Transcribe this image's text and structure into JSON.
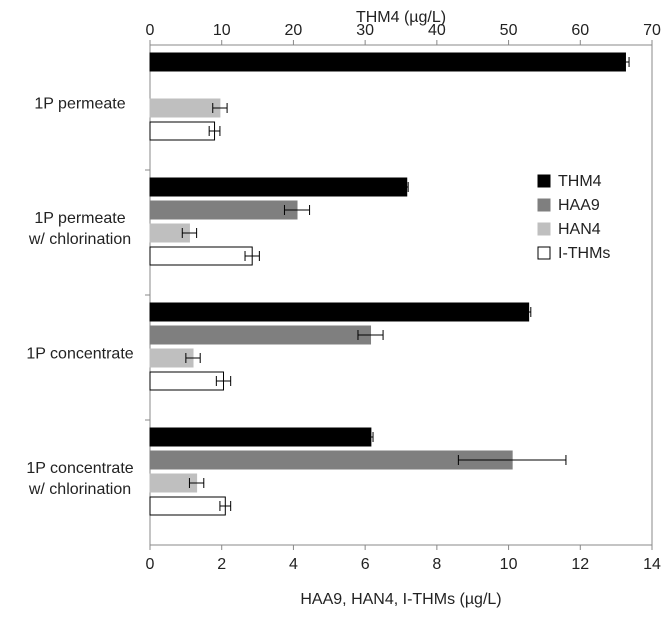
{
  "chart_data": {
    "type": "bar",
    "orientation": "horizontal",
    "categories": [
      [
        "1P permeate"
      ],
      [
        "1P permeate",
        "w/ chlorination"
      ],
      [
        "1P concentrate"
      ],
      [
        "1P concentrate",
        "w/ chlorination"
      ]
    ],
    "top_axis": {
      "label": "THM4 (µg/L)",
      "lim": [
        0,
        70
      ],
      "ticks": [
        0,
        10,
        20,
        30,
        40,
        50,
        60,
        70
      ]
    },
    "bottom_axis": {
      "label": "HAA9, HAN4, I-THMs (µg/L)",
      "lim": [
        0,
        14
      ],
      "ticks": [
        0,
        2,
        4,
        6,
        8,
        10,
        12,
        14
      ]
    },
    "series": [
      {
        "name": "THM4",
        "axis": "top",
        "color": "#000000",
        "stroke": "#000000",
        "values": [
          66.3,
          35.8,
          52.8,
          30.8
        ],
        "errors": [
          0.5,
          0.2,
          0.3,
          0.3
        ]
      },
      {
        "name": "HAA9",
        "axis": "bottom",
        "color": "#7f7f7f",
        "stroke": "#7f7f7f",
        "values": [
          0,
          4.1,
          6.15,
          10.1
        ],
        "errors": [
          0,
          0.35,
          0.35,
          1.5
        ]
      },
      {
        "name": "HAN4",
        "axis": "bottom",
        "color": "#bfbfbf",
        "stroke": "#bfbfbf",
        "values": [
          1.95,
          1.1,
          1.2,
          1.3
        ],
        "errors": [
          0.2,
          0.2,
          0.2,
          0.2
        ]
      },
      {
        "name": "I-THMs",
        "axis": "bottom",
        "color": "#ffffff",
        "stroke": "#000000",
        "values": [
          1.8,
          2.85,
          2.05,
          2.1
        ],
        "errors": [
          0.15,
          0.2,
          0.2,
          0.15
        ]
      }
    ],
    "legend": {
      "placement": "right"
    },
    "grid": false
  }
}
